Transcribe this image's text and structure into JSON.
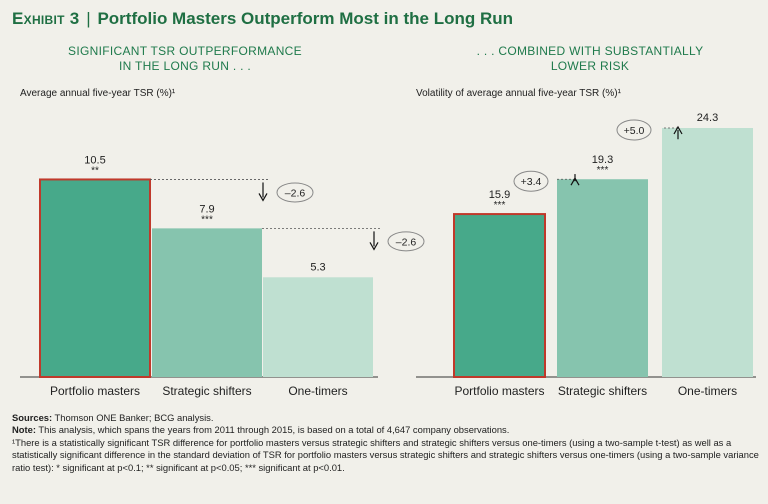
{
  "title": {
    "prefix": "Exhibit 3",
    "separator": "|",
    "text": "Portfolio Masters Outperform Most in the Long Run"
  },
  "colors": {
    "dark_green": "#47a98a",
    "mid_green": "#86c4ae",
    "light_green": "#bfe0d1",
    "outline_red": "#c0392b",
    "title_green": "#1f6f43"
  },
  "chart_data": [
    {
      "type": "bar",
      "title_lines": [
        "SIGNIFICANT TSR OUTPERFORMANCE",
        "IN THE LONG RUN . . ."
      ],
      "ylabel": "Average annual five-year TSR (%)¹",
      "categories": [
        "Portfolio masters",
        "Strategic shifters",
        "One-timers"
      ],
      "values": [
        10.5,
        7.9,
        5.3
      ],
      "value_labels": [
        "10.5",
        "7.9",
        "5.3"
      ],
      "significance": [
        "**",
        "***",
        ""
      ],
      "ylim": [
        0,
        11.8
      ],
      "annotations": [
        {
          "from": 0,
          "to": 1,
          "label": "–2.6",
          "direction": "down"
        },
        {
          "from": 1,
          "to": 2,
          "label": "–2.6",
          "direction": "down"
        }
      ]
    },
    {
      "type": "bar",
      "title_lines": [
        ". . . COMBINED WITH SUBSTANTIALLY",
        "LOWER RISK"
      ],
      "ylabel": "Volatility of average annual five-year TSR (%)¹",
      "categories": [
        "Portfolio masters",
        "Strategic shifters",
        "One-timers"
      ],
      "values": [
        15.9,
        19.3,
        24.3
      ],
      "value_labels": [
        "15.9",
        "19.3",
        "24.3"
      ],
      "significance": [
        "***",
        "***",
        ""
      ],
      "ylim": [
        0,
        24.3
      ],
      "annotations": [
        {
          "from": 0,
          "to": 1,
          "label": "+3.4",
          "direction": "up"
        },
        {
          "from": 1,
          "to": 2,
          "label": "+5.0",
          "direction": "up"
        }
      ]
    }
  ],
  "footer": {
    "sources_label": "Sources:",
    "sources_text": " Thomson ONE Banker; BCG analysis.",
    "note_label": "Note:",
    "note_text": " This analysis, which spans the years from 2011 through 2015, is based on a total of 4,647 company observations.",
    "footnote": "¹There is a statistically significant TSR difference for portfolio masters versus strategic shifters and strategic shifters versus one-timers (using a two-sample t-test) as well as a statistically significant difference in the standard deviation of TSR for portfolio masters versus strategic shifters and strategic shifters versus one-timers (using a two-sample variance ratio test): * significant at p<0.1; ** significant at p<0.05; *** significant at p<0.01."
  }
}
